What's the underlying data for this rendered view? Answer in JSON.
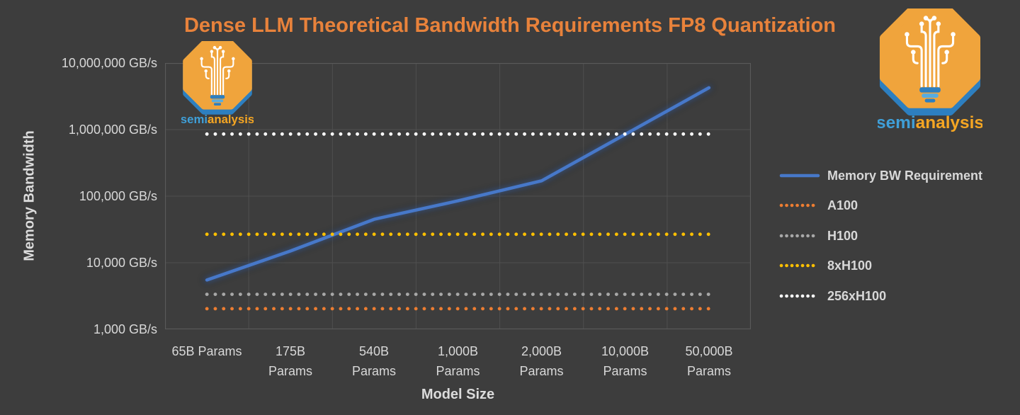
{
  "title": "Dense LLM Theoretical Bandwidth Requirements FP8 Quantization",
  "logo": {
    "brand_semi": "semi",
    "brand_analysis": "analysis",
    "semi_color": "#3F9FD8",
    "analysis_color": "#F5A623",
    "octagon_color": "#F0A43C",
    "octagon_shadow_color": "#2D7FC0",
    "tree_color": "#FFFFFF"
  },
  "colors": {
    "background": "#3D3D3D",
    "title_text": "#E8823B",
    "axis_text": "#D8D8D8",
    "gridline_inner": "#4F4F4F",
    "gridline_frame": "#5A5A5A"
  },
  "chart_data": {
    "type": "line",
    "title": "Dense LLM Theoretical Bandwidth Requirements FP8 Quantization",
    "xlabel": "Model Size",
    "ylabel": "Memory Bandwidth",
    "y_scale": "log10",
    "ylim": [
      1000,
      10000000
    ],
    "grid": true,
    "legend_position": "right",
    "x_categories": [
      "65B Params",
      "175B\nParams",
      "540B\nParams",
      "1,000B\nParams",
      "2,000B\nParams",
      "10,000B\nParams",
      "50,000B\nParams"
    ],
    "y_tick_labels": [
      "10,000,000 GB/s",
      "1,000,000 GB/s",
      "100,000 GB/s",
      "10,000 GB/s",
      "1,000 GB/s"
    ],
    "series": [
      {
        "name": "Memory BW Requirement",
        "style": "solid",
        "color": "#4778C9",
        "values": [
          5500,
          15000,
          45000,
          85000,
          170000,
          850000,
          4250000
        ]
      },
      {
        "name": "A100",
        "style": "dotted",
        "color": "#ED7D31",
        "values": [
          2039,
          2039,
          2039,
          2039,
          2039,
          2039,
          2039
        ]
      },
      {
        "name": "H100",
        "style": "dotted",
        "color": "#A8A8A8",
        "values": [
          3350,
          3350,
          3350,
          3350,
          3350,
          3350,
          3350
        ]
      },
      {
        "name": "8xH100",
        "style": "dotted",
        "color": "#FFC000",
        "values": [
          26800,
          26800,
          26800,
          26800,
          26800,
          26800,
          26800
        ]
      },
      {
        "name": "256xH100",
        "style": "dotted",
        "color": "#FFFFFF",
        "values": [
          857600,
          857600,
          857600,
          857600,
          857600,
          857600,
          857600
        ]
      }
    ]
  }
}
